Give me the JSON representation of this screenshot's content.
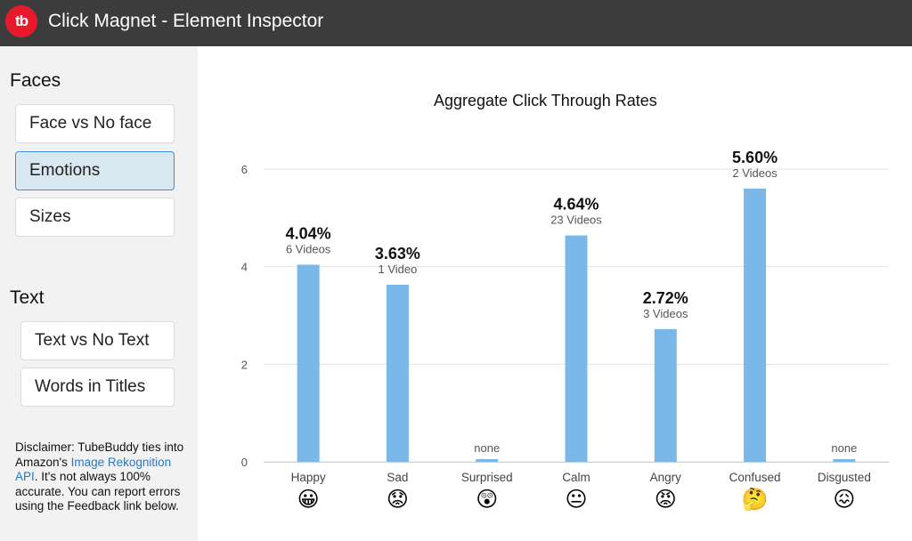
{
  "app": {
    "logo_text": "tb",
    "title": "Click Magnet - Element Inspector"
  },
  "sidebar": {
    "faces_heading": "Faces",
    "faces_items": [
      {
        "label": "Face vs No face",
        "active": false
      },
      {
        "label": "Emotions",
        "active": true
      },
      {
        "label": "Sizes",
        "active": false
      }
    ],
    "text_heading": "Text",
    "text_items": [
      {
        "label": "Text vs No Text"
      },
      {
        "label": "Words in Titles"
      }
    ],
    "disclaimer": {
      "before": "Disclaimer: TubeBuddy ties into Amazon's ",
      "link": "Image Rekognition API",
      "after": ". It's not always 100% accurate. You can report errors using the Feedback link below."
    }
  },
  "chart_data": {
    "type": "bar",
    "title": "Aggregate Click Through Rates",
    "xlabel": "",
    "ylabel": "",
    "ylim": [
      0,
      6
    ],
    "yticks": [
      "0",
      "2",
      "4",
      "6"
    ],
    "grid": true,
    "categories": [
      "Happy",
      "Sad",
      "Surprised",
      "Calm",
      "Angry",
      "Confused",
      "Disgusted"
    ],
    "values": [
      4.04,
      3.63,
      0,
      4.64,
      2.72,
      5.6,
      0
    ],
    "value_labels": [
      "4.04%",
      "3.63%",
      "",
      "4.64%",
      "2.72%",
      "5.60%",
      ""
    ],
    "count_labels": [
      "6 Videos",
      "1 Video",
      "none",
      "23 Videos",
      "3 Videos",
      "2 Videos",
      "none"
    ],
    "emojis": [
      "😀",
      "😟",
      "😲",
      "😐",
      "😡",
      "🤔",
      "😖"
    ],
    "bar_color": "#79b8e8"
  }
}
